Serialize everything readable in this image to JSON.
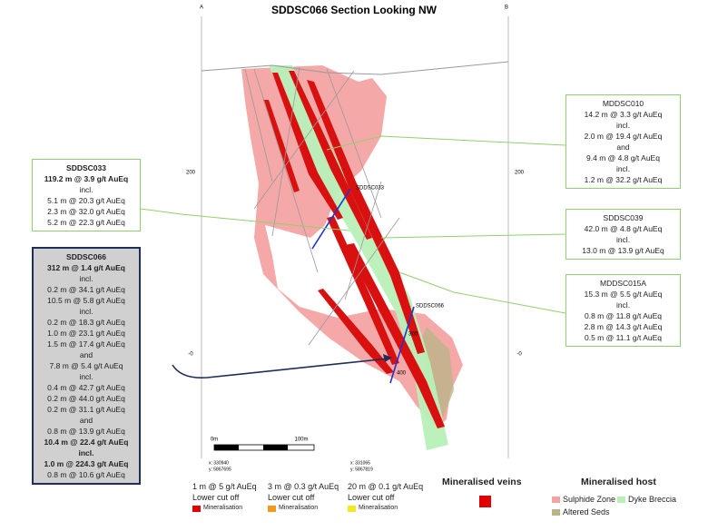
{
  "title": "SDDSC066 Section Looking NW",
  "section_labels": {
    "left": "A",
    "right": "B"
  },
  "elevation_labels": {
    "left": [
      "200",
      "-0"
    ],
    "right": [
      "200",
      "-0"
    ]
  },
  "drill_hole_labels": [
    "SDDSC033",
    "SDDSC066"
  ],
  "depth_labels": [
    "300",
    "400"
  ],
  "scale_bar": [
    "0m",
    "100m"
  ],
  "coordinates": [
    [
      "x: 330940",
      "y: 5867695"
    ],
    [
      "x: 331065",
      "y: 5867819"
    ]
  ],
  "intercept_boxes": [
    {
      "lines": [
        "MDDSC010",
        "14.2 m @ 3.3 g/t AuEq",
        "incl.",
        "2.0 m @ 19.4 g/t AuEq",
        "and",
        "9.4 m @ 4.8 g/t AuEq",
        "incl.",
        "1.2 m @ 32.2 g/t AuEq"
      ]
    },
    {
      "lines": [
        "SDDSC039",
        "42.0 m @ 4.8 g/t AuEq",
        "incl.",
        "13.0 m @ 13.9 g/t AuEq"
      ]
    },
    {
      "lines": [
        "MDDSC015A",
        "15.3 m @ 5.5 g/t AuEq",
        "incl.",
        "0.8 m @ 11.8 g/t AuEq",
        "2.8 m @ 14.3 g/t AuEq",
        "0.5 m @ 11.1 g/t AuEq"
      ]
    },
    {
      "lines": [
        {
          "text": "SDDSC033",
          "bold": true
        },
        {
          "text": "119.2 m @ 3.9 g/t AuEq",
          "bold": true
        },
        "incl.",
        "5.1 m @ 20.3 g/t AuEq",
        "2.3 m @ 32.0 g/t AuEq",
        "5.2 m @ 22.3 g/t AuEq"
      ]
    },
    {
      "lines": [
        {
          "text": "SDDSC066",
          "bold": true
        },
        {
          "text": "312 m @ 1.4 g/t AuEq",
          "bold": true
        },
        "incl.",
        "0.2 m @ 34.1 g/t AuEq",
        "10.5 m @ 5.8 g/t AuEq",
        "incl.",
        "0.2 m @ 18.3 g/t AuEq",
        "1.0 m @ 23.1 g/t AuEq",
        "1.5 m @ 17.4 g/t AuEq",
        "and",
        "7.8 m @ 5.4 g/t AuEq",
        "incl.",
        "0.4 m @ 42.7 g/t AuEq",
        "0.2 m @ 44.0 g/t AuEq",
        "0.2 m @ 31.1 g/t AuEq",
        "and",
        "0.8 m @ 13.9 g/t AuEq",
        {
          "text": "10.4 m @ 22.4 g/t AuEq",
          "bold": true
        },
        {
          "text": "incl.",
          "bold": true
        },
        {
          "text": "1.0 m @ 224.3 g/t AuEq",
          "bold": true
        },
        "0.8 m @ 10.6 g/t AuEq"
      ]
    }
  ],
  "legend": {
    "cutoffs": [
      {
        "grade": "1 m @ 5 g/t AuEq",
        "label": "Lower cut off",
        "swatch": "Mineralisation",
        "color": "#e00000"
      },
      {
        "grade": "3 m @ 0.3 g/t AuEq",
        "label": "Lower cut off",
        "swatch": "Mineralisation",
        "color": "#f39a1e"
      },
      {
        "grade": "20 m @ 0.1 g/t AuEq",
        "label": "Lower cut off",
        "swatch": "Mineralisation",
        "color": "#f5e81c"
      }
    ],
    "veins": {
      "title": "Mineralised veins",
      "color": "#e00000"
    },
    "host": {
      "title": "Mineralised host",
      "items": [
        {
          "label": "Sulphide Zone",
          "color": "#f4a3a3"
        },
        {
          "label": "Dyke Breccia",
          "color": "#b8f0b8"
        },
        {
          "label": "Altered Seds",
          "color": "#bcb488"
        }
      ]
    }
  }
}
